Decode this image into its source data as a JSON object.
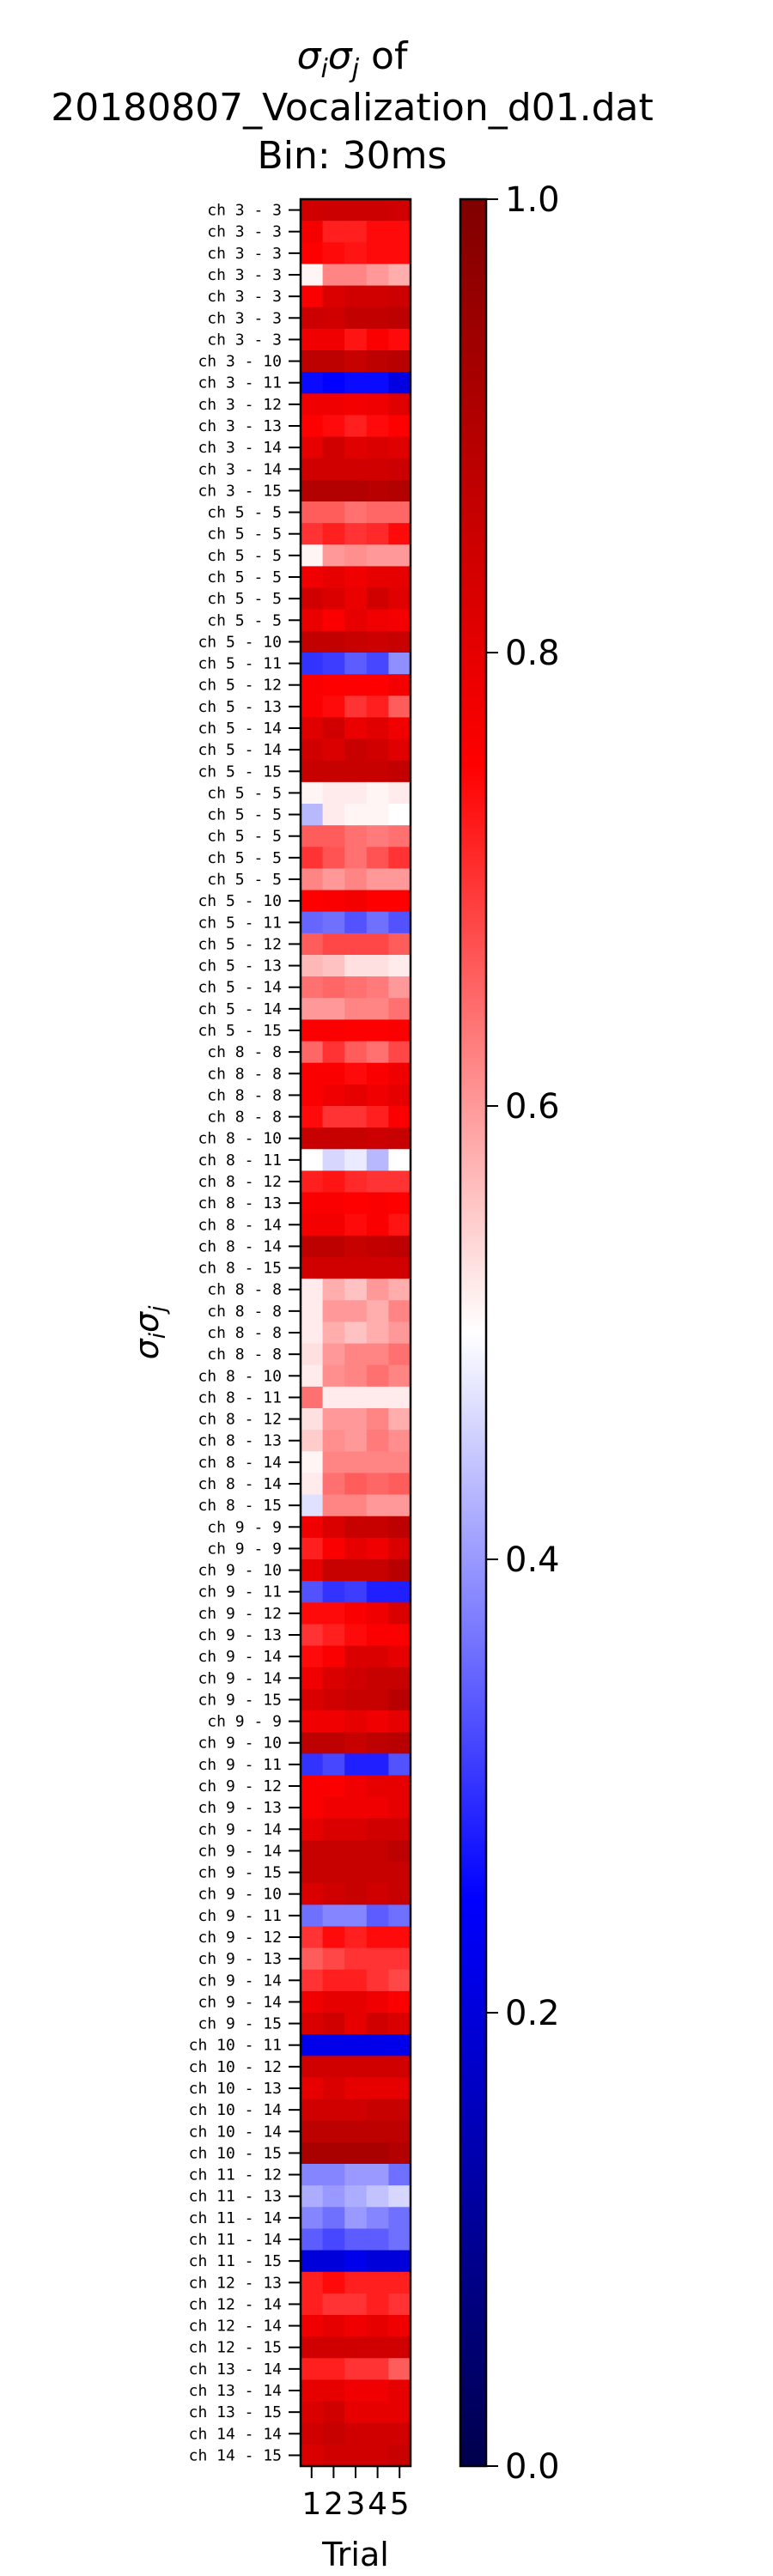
{
  "chart_data": {
    "type": "heatmap",
    "title_lines": [
      "20180807_Vocalization_d01.dat",
      "Bin: 30ms"
    ],
    "title_symbol": {
      "s1": "σ",
      "sub1": "i",
      "s2": "σ",
      "sub2": "j",
      "suffix": " of"
    },
    "ylabel_symbol": {
      "s1": "σ",
      "sub1": "i",
      "s2": "σ",
      "sub2": "j"
    },
    "xlabel": "Trial",
    "x_ticks": [
      "1",
      "2",
      "3",
      "4",
      "5"
    ],
    "colorbar": {
      "min": 0.0,
      "max": 1.0,
      "ticks": [
        "0.0",
        "0.2",
        "0.4",
        "0.6",
        "0.8",
        "1.0"
      ],
      "colormap": "seismic",
      "colors": [
        "#00004c",
        "#0000ff",
        "#ffffff",
        "#ff0000",
        "#800000"
      ]
    },
    "rows": [
      {
        "label": "ch  3 -  3",
        "values": [
          0.84,
          0.85,
          0.85,
          0.85,
          0.84
        ]
      },
      {
        "label": "ch  3 -  3",
        "values": [
          0.77,
          0.72,
          0.72,
          0.74,
          0.74
        ]
      },
      {
        "label": "ch  3 -  3",
        "values": [
          0.75,
          0.74,
          0.73,
          0.74,
          0.74
        ]
      },
      {
        "label": "ch  3 -  3",
        "values": [
          0.51,
          0.62,
          0.62,
          0.6,
          0.58
        ]
      },
      {
        "label": "ch  3 -  3",
        "values": [
          0.76,
          0.82,
          0.84,
          0.84,
          0.85
        ]
      },
      {
        "label": "ch  3 -  3",
        "values": [
          0.85,
          0.84,
          0.87,
          0.87,
          0.88
        ]
      },
      {
        "label": "ch  3 -  3",
        "values": [
          0.78,
          0.78,
          0.73,
          0.76,
          0.74
        ]
      },
      {
        "label": "ch  3 - 10",
        "values": [
          0.88,
          0.88,
          0.86,
          0.88,
          0.89
        ]
      },
      {
        "label": "ch  3 - 11",
        "values": [
          0.26,
          0.25,
          0.26,
          0.26,
          0.21
        ]
      },
      {
        "label": "ch  3 - 12",
        "values": [
          0.78,
          0.78,
          0.77,
          0.78,
          0.81
        ]
      },
      {
        "label": "ch  3 - 13",
        "values": [
          0.75,
          0.74,
          0.72,
          0.74,
          0.75
        ]
      },
      {
        "label": "ch  3 - 14",
        "values": [
          0.8,
          0.84,
          0.81,
          0.82,
          0.81
        ]
      },
      {
        "label": "ch  3 - 14",
        "values": [
          0.84,
          0.84,
          0.84,
          0.84,
          0.85
        ]
      },
      {
        "label": "ch  3 - 15",
        "values": [
          0.9,
          0.9,
          0.9,
          0.89,
          0.9
        ]
      },
      {
        "label": "ch  5 -  5",
        "values": [
          0.66,
          0.66,
          0.64,
          0.65,
          0.65
        ]
      },
      {
        "label": "ch  5 -  5",
        "values": [
          0.7,
          0.72,
          0.7,
          0.71,
          0.74
        ]
      },
      {
        "label": "ch  5 -  5",
        "values": [
          0.51,
          0.6,
          0.61,
          0.6,
          0.6
        ]
      },
      {
        "label": "ch  5 -  5",
        "values": [
          0.78,
          0.8,
          0.78,
          0.8,
          0.8
        ]
      },
      {
        "label": "ch  5 -  5",
        "values": [
          0.84,
          0.82,
          0.79,
          0.84,
          0.81
        ]
      },
      {
        "label": "ch  5 -  5",
        "values": [
          0.79,
          0.76,
          0.8,
          0.78,
          0.77
        ]
      },
      {
        "label": "ch  5 - 10",
        "values": [
          0.87,
          0.87,
          0.86,
          0.85,
          0.86
        ]
      },
      {
        "label": "ch  5 - 11",
        "values": [
          0.3,
          0.31,
          0.34,
          0.32,
          0.39
        ]
      },
      {
        "label": "ch  5 - 12",
        "values": [
          0.76,
          0.75,
          0.75,
          0.75,
          0.77
        ]
      },
      {
        "label": "ch  5 - 13",
        "values": [
          0.76,
          0.74,
          0.7,
          0.72,
          0.66
        ]
      },
      {
        "label": "ch  5 - 14",
        "values": [
          0.81,
          0.84,
          0.79,
          0.81,
          0.78
        ]
      },
      {
        "label": "ch  5 - 14",
        "values": [
          0.84,
          0.82,
          0.86,
          0.84,
          0.81
        ]
      },
      {
        "label": "ch  5 - 15",
        "values": [
          0.86,
          0.86,
          0.86,
          0.86,
          0.87
        ]
      },
      {
        "label": "ch  5 -  5",
        "values": [
          0.51,
          0.52,
          0.52,
          0.51,
          0.52
        ]
      },
      {
        "label": "ch  5 -  5",
        "values": [
          0.43,
          0.52,
          0.51,
          0.51,
          0.5
        ]
      },
      {
        "label": "ch  5 -  5",
        "values": [
          0.66,
          0.66,
          0.64,
          0.63,
          0.64
        ]
      },
      {
        "label": "ch  5 -  5",
        "values": [
          0.7,
          0.67,
          0.64,
          0.67,
          0.7
        ]
      },
      {
        "label": "ch  5 -  5",
        "values": [
          0.62,
          0.6,
          0.62,
          0.6,
          0.6
        ]
      },
      {
        "label": "ch  5 - 10",
        "values": [
          0.75,
          0.76,
          0.77,
          0.75,
          0.75
        ]
      },
      {
        "label": "ch  5 - 11",
        "values": [
          0.35,
          0.36,
          0.33,
          0.36,
          0.33
        ]
      },
      {
        "label": "ch  5 - 12",
        "values": [
          0.66,
          0.68,
          0.68,
          0.68,
          0.66
        ]
      },
      {
        "label": "ch  5 - 13",
        "values": [
          0.57,
          0.56,
          0.53,
          0.53,
          0.52
        ]
      },
      {
        "label": "ch  5 - 14",
        "values": [
          0.64,
          0.65,
          0.64,
          0.63,
          0.6
        ]
      },
      {
        "label": "ch  5 - 14",
        "values": [
          0.6,
          0.6,
          0.62,
          0.62,
          0.64
        ]
      },
      {
        "label": "ch  5 - 15",
        "values": [
          0.76,
          0.76,
          0.75,
          0.75,
          0.76
        ]
      },
      {
        "label": "ch  8 -  8",
        "values": [
          0.65,
          0.7,
          0.66,
          0.64,
          0.68
        ]
      },
      {
        "label": "ch  8 -  8",
        "values": [
          0.76,
          0.76,
          0.74,
          0.76,
          0.78
        ]
      },
      {
        "label": "ch  8 -  8",
        "values": [
          0.76,
          0.78,
          0.8,
          0.78,
          0.8
        ]
      },
      {
        "label": "ch  8 -  8",
        "values": [
          0.74,
          0.7,
          0.7,
          0.72,
          0.76
        ]
      },
      {
        "label": "ch  8 - 10",
        "values": [
          0.86,
          0.86,
          0.86,
          0.85,
          0.86
        ]
      },
      {
        "label": "ch  8 - 11",
        "values": [
          0.5,
          0.46,
          0.48,
          0.43,
          0.5
        ]
      },
      {
        "label": "ch  8 - 12",
        "values": [
          0.72,
          0.73,
          0.71,
          0.7,
          0.7
        ]
      },
      {
        "label": "ch  8 - 13",
        "values": [
          0.76,
          0.76,
          0.75,
          0.76,
          0.75
        ]
      },
      {
        "label": "ch  8 - 14",
        "values": [
          0.77,
          0.77,
          0.74,
          0.76,
          0.73
        ]
      },
      {
        "label": "ch  8 - 14",
        "values": [
          0.88,
          0.88,
          0.86,
          0.87,
          0.88
        ]
      },
      {
        "label": "ch  8 - 15",
        "values": [
          0.84,
          0.84,
          0.84,
          0.84,
          0.84
        ]
      },
      {
        "label": "ch  8 -  8",
        "values": [
          0.52,
          0.58,
          0.56,
          0.6,
          0.58
        ]
      },
      {
        "label": "ch  8 -  8",
        "values": [
          0.52,
          0.6,
          0.6,
          0.58,
          0.62
        ]
      },
      {
        "label": "ch  8 -  8",
        "values": [
          0.52,
          0.58,
          0.56,
          0.58,
          0.6
        ]
      },
      {
        "label": "ch  8 -  8",
        "values": [
          0.53,
          0.6,
          0.62,
          0.62,
          0.64
        ]
      },
      {
        "label": "ch  8 - 10",
        "values": [
          0.52,
          0.61,
          0.62,
          0.64,
          0.62
        ]
      },
      {
        "label": "ch  8 - 11",
        "values": [
          0.64,
          0.52,
          0.52,
          0.52,
          0.52
        ]
      },
      {
        "label": "ch  8 - 12",
        "values": [
          0.53,
          0.6,
          0.6,
          0.62,
          0.58
        ]
      },
      {
        "label": "ch  8 - 13",
        "values": [
          0.55,
          0.61,
          0.6,
          0.63,
          0.61
        ]
      },
      {
        "label": "ch  8 - 14",
        "values": [
          0.51,
          0.62,
          0.62,
          0.62,
          0.62
        ]
      },
      {
        "label": "ch  8 - 14",
        "values": [
          0.52,
          0.64,
          0.66,
          0.65,
          0.66
        ]
      },
      {
        "label": "ch  8 - 15",
        "values": [
          0.47,
          0.62,
          0.62,
          0.6,
          0.6
        ]
      },
      {
        "label": "ch  9 -  9",
        "values": [
          0.78,
          0.82,
          0.86,
          0.86,
          0.88
        ]
      },
      {
        "label": "ch  9 -  9",
        "values": [
          0.72,
          0.76,
          0.8,
          0.78,
          0.82
        ]
      },
      {
        "label": "ch  9 - 10",
        "values": [
          0.8,
          0.86,
          0.86,
          0.86,
          0.89
        ]
      },
      {
        "label": "ch  9 - 11",
        "values": [
          0.33,
          0.3,
          0.31,
          0.28,
          0.28
        ]
      },
      {
        "label": "ch  9 - 12",
        "values": [
          0.74,
          0.74,
          0.76,
          0.78,
          0.82
        ]
      },
      {
        "label": "ch  9 - 13",
        "values": [
          0.7,
          0.72,
          0.74,
          0.76,
          0.76
        ]
      },
      {
        "label": "ch  9 - 14",
        "values": [
          0.74,
          0.76,
          0.82,
          0.82,
          0.8
        ]
      },
      {
        "label": "ch  9 - 14",
        "values": [
          0.78,
          0.82,
          0.84,
          0.86,
          0.86
        ]
      },
      {
        "label": "ch  9 - 15",
        "values": [
          0.82,
          0.84,
          0.86,
          0.86,
          0.89
        ]
      },
      {
        "label": "ch  9 -  9",
        "values": [
          0.78,
          0.78,
          0.8,
          0.78,
          0.8
        ]
      },
      {
        "label": "ch  9 - 10",
        "values": [
          0.88,
          0.88,
          0.86,
          0.88,
          0.89
        ]
      },
      {
        "label": "ch  9 - 11",
        "values": [
          0.3,
          0.32,
          0.28,
          0.28,
          0.33
        ]
      },
      {
        "label": "ch  9 - 12",
        "values": [
          0.76,
          0.76,
          0.78,
          0.8,
          0.8
        ]
      },
      {
        "label": "ch  9 - 13",
        "values": [
          0.76,
          0.78,
          0.78,
          0.78,
          0.8
        ]
      },
      {
        "label": "ch  9 - 14",
        "values": [
          0.8,
          0.82,
          0.82,
          0.84,
          0.84
        ]
      },
      {
        "label": "ch  9 - 14",
        "values": [
          0.86,
          0.86,
          0.86,
          0.86,
          0.88
        ]
      },
      {
        "label": "ch  9 - 15",
        "values": [
          0.86,
          0.86,
          0.86,
          0.86,
          0.86
        ]
      },
      {
        "label": "ch  9 - 10",
        "values": [
          0.82,
          0.84,
          0.86,
          0.84,
          0.86
        ]
      },
      {
        "label": "ch  9 - 11",
        "values": [
          0.36,
          0.38,
          0.38,
          0.34,
          0.36
        ]
      },
      {
        "label": "ch  9 - 12",
        "values": [
          0.7,
          0.74,
          0.72,
          0.74,
          0.74
        ]
      },
      {
        "label": "ch  9 - 13",
        "values": [
          0.66,
          0.68,
          0.7,
          0.7,
          0.7
        ]
      },
      {
        "label": "ch  9 - 14",
        "values": [
          0.7,
          0.72,
          0.72,
          0.7,
          0.68
        ]
      },
      {
        "label": "ch  9 - 14",
        "values": [
          0.78,
          0.8,
          0.8,
          0.78,
          0.76
        ]
      },
      {
        "label": "ch  9 - 15",
        "values": [
          0.82,
          0.84,
          0.8,
          0.84,
          0.82
        ]
      },
      {
        "label": "ch 10 - 11",
        "values": [
          0.22,
          0.22,
          0.22,
          0.22,
          0.22
        ]
      },
      {
        "label": "ch 10 - 12",
        "values": [
          0.84,
          0.84,
          0.84,
          0.84,
          0.84
        ]
      },
      {
        "label": "ch 10 - 13",
        "values": [
          0.8,
          0.82,
          0.8,
          0.8,
          0.8
        ]
      },
      {
        "label": "ch 10 - 14",
        "values": [
          0.84,
          0.84,
          0.84,
          0.86,
          0.86
        ]
      },
      {
        "label": "ch 10 - 14",
        "values": [
          0.88,
          0.88,
          0.88,
          0.88,
          0.88
        ]
      },
      {
        "label": "ch 10 - 15",
        "values": [
          0.92,
          0.92,
          0.92,
          0.92,
          0.9
        ]
      },
      {
        "label": "ch 11 - 12",
        "values": [
          0.38,
          0.38,
          0.4,
          0.4,
          0.36
        ]
      },
      {
        "label": "ch 11 - 13",
        "values": [
          0.42,
          0.4,
          0.42,
          0.44,
          0.46
        ]
      },
      {
        "label": "ch 11 - 14",
        "values": [
          0.38,
          0.36,
          0.4,
          0.38,
          0.36
        ]
      },
      {
        "label": "ch 11 - 14",
        "values": [
          0.34,
          0.32,
          0.34,
          0.34,
          0.36
        ]
      },
      {
        "label": "ch 11 - 15",
        "values": [
          0.2,
          0.2,
          0.22,
          0.2,
          0.2
        ]
      },
      {
        "label": "ch 12 - 13",
        "values": [
          0.72,
          0.74,
          0.72,
          0.72,
          0.72
        ]
      },
      {
        "label": "ch 12 - 14",
        "values": [
          0.72,
          0.7,
          0.7,
          0.72,
          0.7
        ]
      },
      {
        "label": "ch 12 - 14",
        "values": [
          0.78,
          0.8,
          0.78,
          0.8,
          0.78
        ]
      },
      {
        "label": "ch 12 - 15",
        "values": [
          0.84,
          0.84,
          0.84,
          0.84,
          0.84
        ]
      },
      {
        "label": "ch 13 - 14",
        "values": [
          0.72,
          0.72,
          0.7,
          0.7,
          0.66
        ]
      },
      {
        "label": "ch 13 - 14",
        "values": [
          0.8,
          0.8,
          0.78,
          0.78,
          0.8
        ]
      },
      {
        "label": "ch 13 - 15",
        "values": [
          0.82,
          0.84,
          0.8,
          0.8,
          0.8
        ]
      },
      {
        "label": "ch 14 - 14",
        "values": [
          0.84,
          0.86,
          0.84,
          0.84,
          0.84
        ]
      },
      {
        "label": "ch 14 - 15",
        "values": [
          0.82,
          0.84,
          0.84,
          0.84,
          0.86
        ]
      }
    ]
  }
}
